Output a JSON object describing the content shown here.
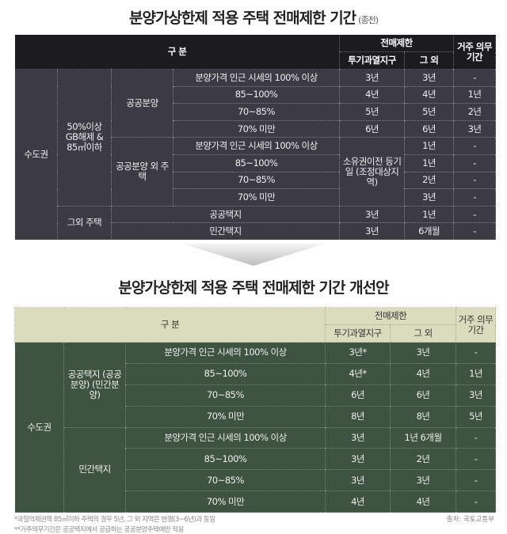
{
  "table1": {
    "title": "분양가상한제 적용 주택 전매제한 기간",
    "title_note": "(종전)",
    "header": {
      "category": "구   분",
      "resale": "전매제한",
      "speculation": "투기과열지구",
      "other": "그   외",
      "residence": "거주 의무기간"
    },
    "rows": [
      [
        "수도권",
        "50%이상 GB해제 & 85㎡이하",
        "공공분양",
        "분양가격 인근 시세의 100% 이상",
        "3년",
        "3년",
        "-"
      ],
      [
        "85~100%",
        "4년",
        "4년",
        "1년"
      ],
      [
        "70~85%",
        "5년",
        "5년",
        "2년"
      ],
      [
        "70% 미만",
        "6년",
        "6년",
        "3년"
      ],
      [
        "공공분양 외 주택",
        "분양가격 인근 시세의 100% 이상",
        "소유권이전 등기일 (조정대상지역)",
        "1년",
        "-"
      ],
      [
        "85~100%",
        "1년",
        "-"
      ],
      [
        "70~85%",
        "2년",
        "-"
      ],
      [
        "70% 미만",
        "3년",
        "-"
      ],
      [
        "그외 주택",
        "공공택지",
        "3년",
        "1년",
        "-"
      ],
      [
        "민간택지",
        "3년",
        "6개월",
        "-"
      ]
    ]
  },
  "table2": {
    "title": "분양가상한제 적용 주택 전매제한 기간 개선안",
    "header": {
      "category": "구   분",
      "resale": "전매제한",
      "speculation": "투기과열지구",
      "other": "그   외",
      "residence": "거주 의무기간"
    },
    "rows": [
      [
        "수도권",
        "공공택지 (공공분양) (민간분양)",
        "분양가격 인근 시세의  100% 이상",
        "3년*",
        "3년",
        "-"
      ],
      [
        "85~100%",
        "4년*",
        "4년",
        "1년"
      ],
      [
        "70~85%",
        "6년",
        "6년",
        "3년"
      ],
      [
        "70% 미만",
        "8년",
        "8년",
        "5년"
      ],
      [
        "민간택지",
        "분양가격 인근 시세의 100% 이상",
        "3년",
        "1년 6개월",
        "-"
      ],
      [
        "85~100%",
        "3년",
        "2년",
        "-"
      ],
      [
        "70~85%",
        "3년",
        "3년",
        "-"
      ],
      [
        "70% 미만",
        "4년",
        "4년",
        "-"
      ]
    ]
  },
  "footnotes": [
    "*과밀억제권역 85㎡이하 주택의 경우 5년, 그 외 지역은 현행(3~6년)과 동일",
    "**거주의무기간은 공공택지에서 공급하는 공공분양주택에만 적용"
  ],
  "source": "출처: 국토교통부",
  "colors": {
    "old_header": "#1b1b20",
    "old_body": "#3c3b44",
    "new_header": "#dadcbd",
    "new_body": "#3e5340"
  }
}
